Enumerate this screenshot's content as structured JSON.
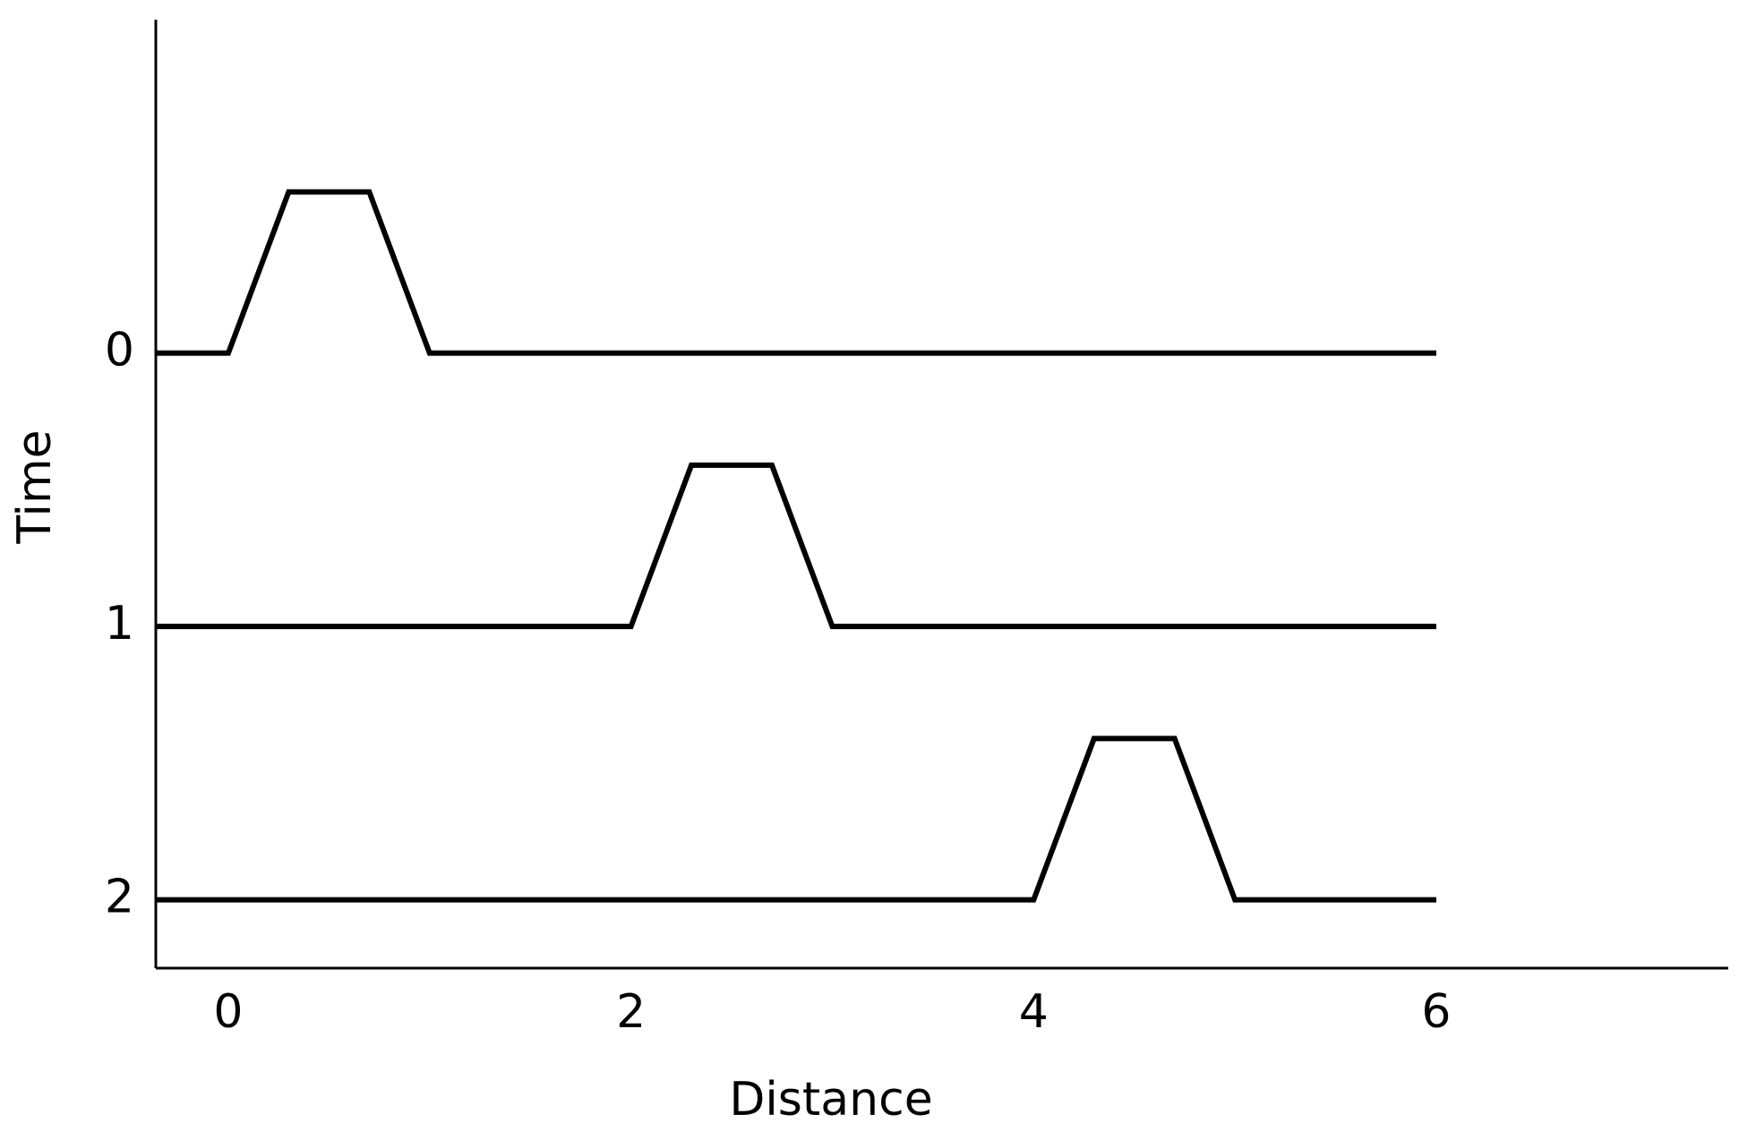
{
  "chart_data": {
    "type": "line",
    "xlabel": "Distance",
    "ylabel": "Time",
    "xlim": [
      -0.36,
      7.45
    ],
    "xticks": [
      0,
      2,
      4,
      6
    ],
    "ylim": [
      2.25,
      -1.22
    ],
    "yticks": [
      0,
      1,
      2
    ],
    "series": [
      {
        "color": "#000000",
        "x": [
          -0.36,
          0,
          0.3,
          0.7,
          1,
          6
        ],
        "values": [
          0,
          0,
          -0.59,
          -0.59,
          0,
          0
        ]
      },
      {
        "color": "#000000",
        "x": [
          -0.36,
          2,
          2.3,
          2.7,
          3,
          6
        ],
        "values": [
          1,
          1,
          0.41,
          0.41,
          1,
          1
        ]
      },
      {
        "color": "#000000",
        "x": [
          -0.36,
          4,
          4.3,
          4.7,
          5,
          6
        ],
        "values": [
          2,
          2,
          1.41,
          1.41,
          2,
          2
        ]
      }
    ]
  }
}
